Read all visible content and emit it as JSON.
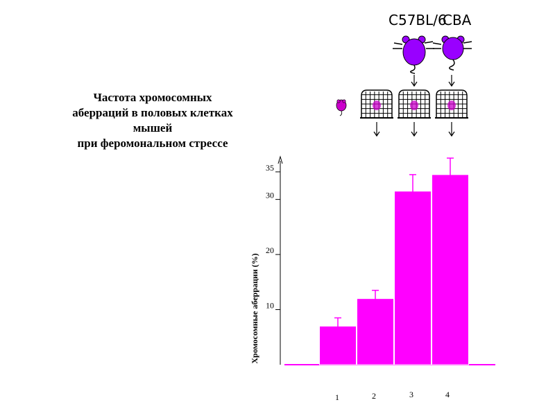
{
  "title": {
    "lines": [
      "Частота хромосомных",
      "аберраций в половых клетках",
      "мышей",
      "при феромональном стрессе"
    ]
  },
  "strains": {
    "left": "C57BL/6",
    "right": "CBA"
  },
  "colors": {
    "bar": "#ff00ff",
    "mouse": "#9900ff",
    "ink": "#000000"
  },
  "icons": [
    "small-mouse-icon",
    "cage-icon",
    "cage-icon",
    "cage-icon",
    "mouse-icon",
    "mouse-icon",
    "arrow-down-icon"
  ],
  "chart_data": {
    "type": "bar",
    "title": "",
    "xlabel": "",
    "ylabel": "Хромосомные аберрации (%)",
    "categories": [
      "1",
      "2",
      "3",
      "4"
    ],
    "values": [
      7,
      12,
      31.5,
      34.5
    ],
    "errors_low": [
      5,
      10,
      28.5,
      31.5
    ],
    "errors_high": [
      8.5,
      13.5,
      34.5,
      37.5
    ],
    "yticks": [
      10,
      20,
      30,
      35
    ],
    "ytick_labels": [
      "10",
      "20",
      "30",
      "35"
    ],
    "ylim": [
      0,
      37
    ],
    "grid": false
  }
}
